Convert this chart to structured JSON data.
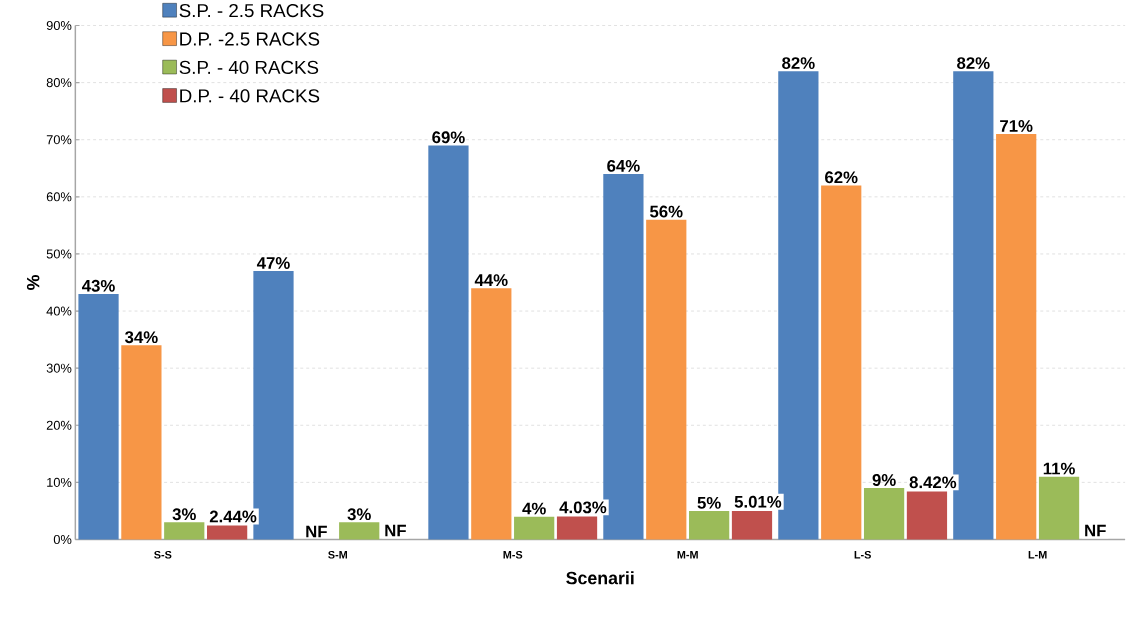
{
  "chart_data": {
    "type": "bar",
    "xlabel": "Scenarii",
    "ylabel": "%",
    "categories": [
      "S-S",
      "S-M",
      "M-S",
      "M-M",
      "L-S",
      "L-M"
    ],
    "series": [
      {
        "name": "S.P. - 2.5 RACKS",
        "color": "#4f81bd",
        "values": [
          43,
          47,
          69,
          64,
          82,
          82
        ],
        "value_labels": [
          "43%",
          "47%",
          "69%",
          "64%",
          "82%",
          "82%"
        ]
      },
      {
        "name": "D.P. -2.5 RACKS",
        "color": "#f79646",
        "values": [
          34,
          null,
          44,
          56,
          62,
          71
        ],
        "value_labels": [
          "34%",
          "NF",
          "44%",
          "56%",
          "62%",
          "71%"
        ]
      },
      {
        "name": "S.P. - 40 RACKS",
        "color": "#9bbb59",
        "values": [
          3,
          3,
          4,
          5,
          9,
          11
        ],
        "value_labels": [
          "3%",
          "3%",
          "4%",
          "5%",
          "9%",
          "11%"
        ]
      },
      {
        "name": "D.P. - 40 RACKS",
        "color": "#c0504d",
        "values": [
          2.44,
          null,
          4.03,
          5.01,
          8.42,
          null
        ],
        "value_labels": [
          "2.44%",
          "NF",
          "4.03%",
          "5.01%",
          "8.42%",
          "NF"
        ]
      }
    ],
    "ylim": [
      0,
      90
    ],
    "yticks": [
      {
        "value": 0,
        "label": "0%"
      },
      {
        "value": 10,
        "label": "10%"
      },
      {
        "value": 20,
        "label": "20%"
      },
      {
        "value": 30,
        "label": "30%"
      },
      {
        "value": 40,
        "label": "40%"
      },
      {
        "value": 50,
        "label": "50%"
      },
      {
        "value": 60,
        "label": "60%"
      },
      {
        "value": 70,
        "label": "70%"
      },
      {
        "value": 80,
        "label": "80%"
      },
      {
        "value": 90,
        "label": "90%"
      }
    ],
    "grid": "y",
    "legend": "top left"
  }
}
